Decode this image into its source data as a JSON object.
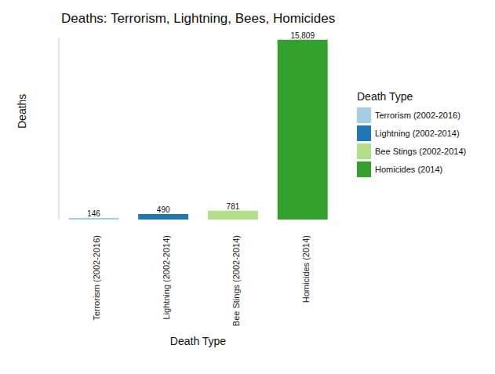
{
  "chart_data": {
    "type": "bar",
    "title": "Deaths: Terrorism, Lightning, Bees, Homicides",
    "x_label": "Death Type",
    "y_label": "Deaths",
    "legend_title": "Death Type",
    "categories": [
      "Terrorism (2002-2016)",
      "Lightning (2002-2014)",
      "Bee Stings (2002-2014)",
      "Homicides (2014)"
    ],
    "values": [
      146,
      490,
      781,
      15809
    ],
    "value_labels": [
      "146",
      "490",
      "781",
      "15,809"
    ],
    "colors": [
      "#a6cee3",
      "#1f78b4",
      "#b2df8a",
      "#33a02c"
    ],
    "ylim": [
      0,
      16000
    ],
    "data_labels": true,
    "tick_labels": "x",
    "legend": "right",
    "grid": false
  }
}
